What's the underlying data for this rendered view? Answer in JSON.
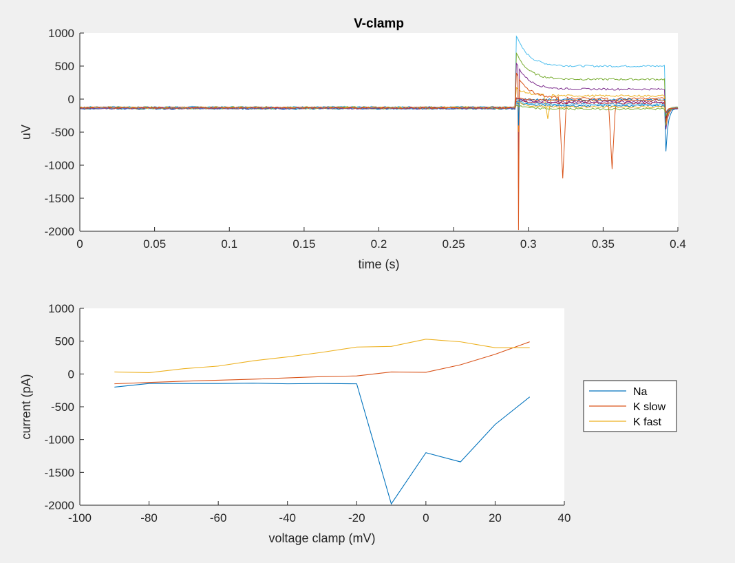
{
  "chart_data": [
    {
      "type": "line",
      "title": "V-clamp",
      "xlabel": "time (s)",
      "ylabel": "uV",
      "xlim": [
        0,
        0.4
      ],
      "ylim": [
        -2000,
        1000
      ],
      "xticks": [
        "0",
        "0.05",
        "0.1",
        "0.15",
        "0.2",
        "0.25",
        "0.3",
        "0.35",
        "0.4"
      ],
      "yticks": [
        "-2000",
        "-1500",
        "-1000",
        "-500",
        "0",
        "500",
        "1000"
      ],
      "grid": false,
      "pulse_window_s": [
        0.293,
        0.392
      ],
      "traces": [
        {
          "color": "#4dbeee",
          "baseline": -120,
          "step": 500,
          "onset_peak": 900,
          "offset_dip": -300
        },
        {
          "color": "#77ac30",
          "baseline": -125,
          "step": 300,
          "onset_peak": 650,
          "offset_dip": -350
        },
        {
          "color": "#7e2f8e",
          "baseline": -130,
          "step": 150,
          "onset_peak": 500,
          "onset_dip": -1350,
          "offset_dip": -450
        },
        {
          "color": "#edb120",
          "baseline": -135,
          "step": 50,
          "onset_peak": 150,
          "onset_dip": -500,
          "offset_dip": -400,
          "spikes": [
            [
              0.313,
              -300
            ]
          ]
        },
        {
          "color": "#d95319",
          "baseline": -130,
          "step": 10,
          "onset_peak": 350,
          "onset_dip": -1980,
          "offset_dip": -350,
          "spikes": [
            [
              0.323,
              -1200
            ],
            [
              0.356,
              -1060
            ]
          ]
        },
        {
          "color": "#0072bd",
          "baseline": -140,
          "step": -10,
          "onset_peak": 0,
          "onset_dip": -400,
          "offset_dip": -800
        },
        {
          "color": "#a2142f",
          "baseline": -135,
          "step": -60,
          "onset_peak": -30,
          "offset_dip": -300
        },
        {
          "color": "#0072bd",
          "baseline": -145,
          "step": -100,
          "onset_peak": -60,
          "offset_dip": -250
        },
        {
          "color": "#77ac30",
          "baseline": -140,
          "step": -150,
          "onset_peak": -100,
          "offset_dip": -250
        },
        {
          "color": "#edb120",
          "baseline": -130,
          "step": -120,
          "onset_peak": -50,
          "offset_dip": -200
        },
        {
          "color": "#4dbeee",
          "baseline": -135,
          "step": -80,
          "onset_peak": -40,
          "offset_dip": -200
        },
        {
          "color": "#7e2f8e",
          "baseline": -140,
          "step": -40,
          "onset_peak": 0,
          "offset_dip": -220
        },
        {
          "color": "#d95319",
          "baseline": -130,
          "step": -20,
          "onset_peak": 20,
          "offset_dip": -200
        }
      ]
    },
    {
      "type": "line",
      "title": "",
      "xlabel": "voltage clamp (mV)",
      "ylabel": "current (pA)",
      "xlim": [
        -100,
        40
      ],
      "ylim": [
        -2000,
        1000
      ],
      "xticks": [
        "-100",
        "-80",
        "-60",
        "-40",
        "-20",
        "0",
        "20",
        "40"
      ],
      "yticks": [
        "-2000",
        "-1500",
        "-1000",
        "-500",
        "0",
        "500",
        "1000"
      ],
      "grid": false,
      "legend": "outside-right",
      "x": [
        -90,
        -80,
        -70,
        -60,
        -50,
        -40,
        -30,
        -20,
        -10,
        0,
        10,
        20,
        30
      ],
      "series": [
        {
          "name": "Na",
          "color": "#0072bd",
          "values": [
            -200,
            -145,
            -145,
            -145,
            -140,
            -150,
            -145,
            -150,
            -1980,
            -1200,
            -1340,
            -770,
            -350
          ]
        },
        {
          "name": "K slow",
          "color": "#d95319",
          "values": [
            -150,
            -130,
            -110,
            -95,
            -80,
            -60,
            -40,
            -30,
            30,
            25,
            140,
            300,
            490
          ]
        },
        {
          "name": "K fast",
          "color": "#edb120",
          "values": [
            30,
            20,
            80,
            120,
            200,
            260,
            330,
            410,
            420,
            530,
            490,
            400,
            400
          ]
        }
      ]
    }
  ]
}
